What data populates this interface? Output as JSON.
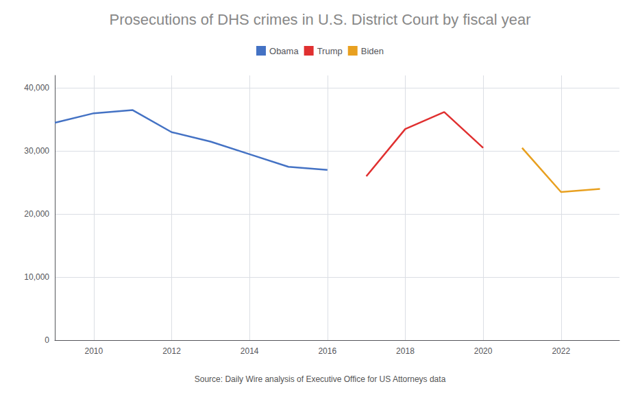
{
  "chart_data": {
    "type": "line",
    "title": "Prosecutions of DHS crimes in U.S. District Court by fiscal year",
    "annotations": [
      "Source: Daily Wire analysis of Executive Office for US Attorneys data"
    ],
    "series": [
      {
        "name": "Obama",
        "color": "#4472C4",
        "x": [
          2009,
          2010,
          2011,
          2012,
          2013,
          2014,
          2015,
          2016
        ],
        "values": [
          34500,
          36000,
          36500,
          33000,
          31500,
          29500,
          27500,
          27000
        ]
      },
      {
        "name": "Trump",
        "color": "#E03030",
        "x": [
          2017,
          2018,
          2019,
          2020
        ],
        "values": [
          26000,
          33500,
          36200,
          30500
        ]
      },
      {
        "name": "Biden",
        "color": "#E8A020",
        "x": [
          2021,
          2022,
          2023
        ],
        "values": [
          30500,
          23500,
          24000
        ]
      }
    ],
    "xlim": [
      2009,
      2023.5
    ],
    "xticks": [
      2010,
      2012,
      2014,
      2016,
      2018,
      2020,
      2022
    ],
    "ylim": [
      0,
      42000
    ],
    "yticks": [
      0,
      {
        "value": 10000,
        "label": "10,000"
      },
      {
        "value": 20000,
        "label": "20,000"
      },
      {
        "value": 30000,
        "label": "30,000"
      },
      {
        "value": 40000,
        "label": "40,000"
      }
    ],
    "grid": true,
    "legend": "top"
  }
}
